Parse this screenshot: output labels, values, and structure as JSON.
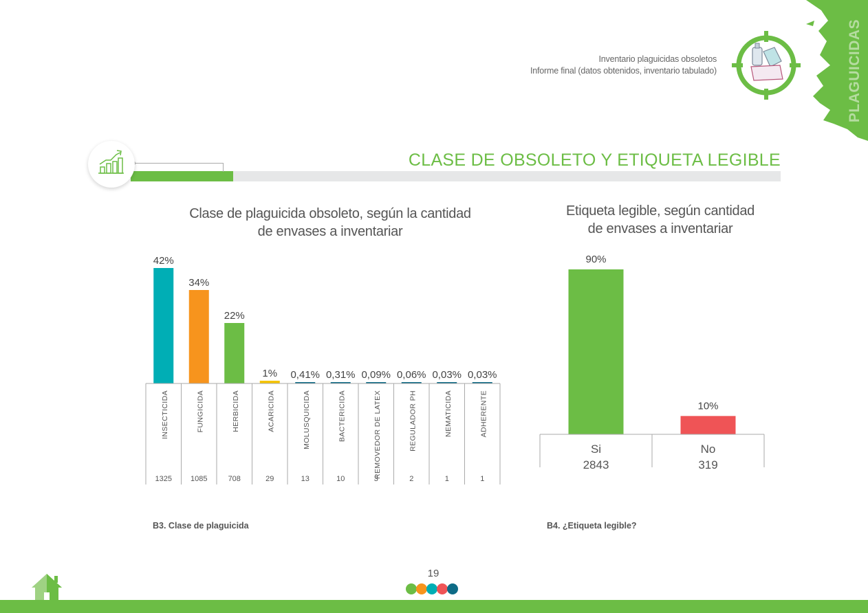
{
  "header": {
    "report_line1": "Inventario plaguicidas obsoletos",
    "report_line2": "Informe final (datos obtenidos, inventario tabulado)",
    "side_label": "PLAGUICIDAS",
    "logo_icon": "pesticide-containers-target-icon"
  },
  "section": {
    "title": "CLASE  DE OBSOLETO Y ETIQUETA LEGIBLE",
    "icon": "growth-chart-icon"
  },
  "colors": {
    "brand_green": "#6cbd45",
    "teal": "#00aeb5",
    "orange": "#f7941d",
    "green": "#6cbd45",
    "yellow": "#f5c400",
    "dark_teal": "#0e6b86",
    "red": "#ef5456",
    "gray_bar": "#e6e7e8"
  },
  "chart_data": [
    {
      "type": "bar",
      "title": "Clase de plaguicida obsoleto, según la cantidad de envases a inventariar",
      "title_line1": "Clase de plaguicida obsoleto, según la cantidad",
      "title_line2": "de envases a inventariar",
      "xlabel": "",
      "ylabel": "",
      "categories": [
        "INSECTICIDA",
        "FUNGICIDA",
        "HERBICIDA",
        "ACARICIDA",
        "MOLUSQUICIDA",
        "BACTERICIDA",
        "REMOVEDOR DE LATEX",
        "REGULADOR PH",
        "NEMATICIDA",
        "ADHERENTE"
      ],
      "values": [
        42,
        34,
        22,
        1,
        0.41,
        0.31,
        0.09,
        0.06,
        0.03,
        0.03
      ],
      "value_labels": [
        "42%",
        "34%",
        "22%",
        "1%",
        "0,41%",
        "0,31%",
        "0,09%",
        "0,06%",
        "0,03%",
        "0,03%"
      ],
      "counts": [
        1325,
        1085,
        708,
        29,
        13,
        10,
        3,
        2,
        1,
        1
      ],
      "bar_colors": [
        "#00aeb5",
        "#f7941d",
        "#6cbd45",
        "#f5c400",
        "#0e6b86",
        "#0e6b86",
        "#0e6b86",
        "#0e6b86",
        "#0e6b86",
        "#0e6b86"
      ],
      "ylim": [
        0,
        42
      ],
      "grid": false,
      "legend": "none",
      "caption": "B3. Clase de plaguicida"
    },
    {
      "type": "bar",
      "title": "Etiqueta legible, según cantidad de envases a inventariar",
      "title_line1": "Etiqueta legible, según cantidad",
      "title_line2": "de envases a inventariar",
      "xlabel": "",
      "ylabel": "",
      "categories": [
        "Si",
        "No"
      ],
      "values": [
        90,
        10
      ],
      "value_labels": [
        "90%",
        "10%"
      ],
      "counts": [
        2843,
        319
      ],
      "bar_colors": [
        "#6cbd45",
        "#ef5456"
      ],
      "ylim": [
        0,
        90
      ],
      "grid": false,
      "legend": "none",
      "caption": "B4. ¿Etiqueta legible?"
    }
  ],
  "footer": {
    "page_number": "19",
    "home_icon": "home-icon",
    "dot_colors": [
      "#6cbd45",
      "#f7941d",
      "#00aeb5",
      "#ef5456",
      "#0e6b86"
    ]
  }
}
